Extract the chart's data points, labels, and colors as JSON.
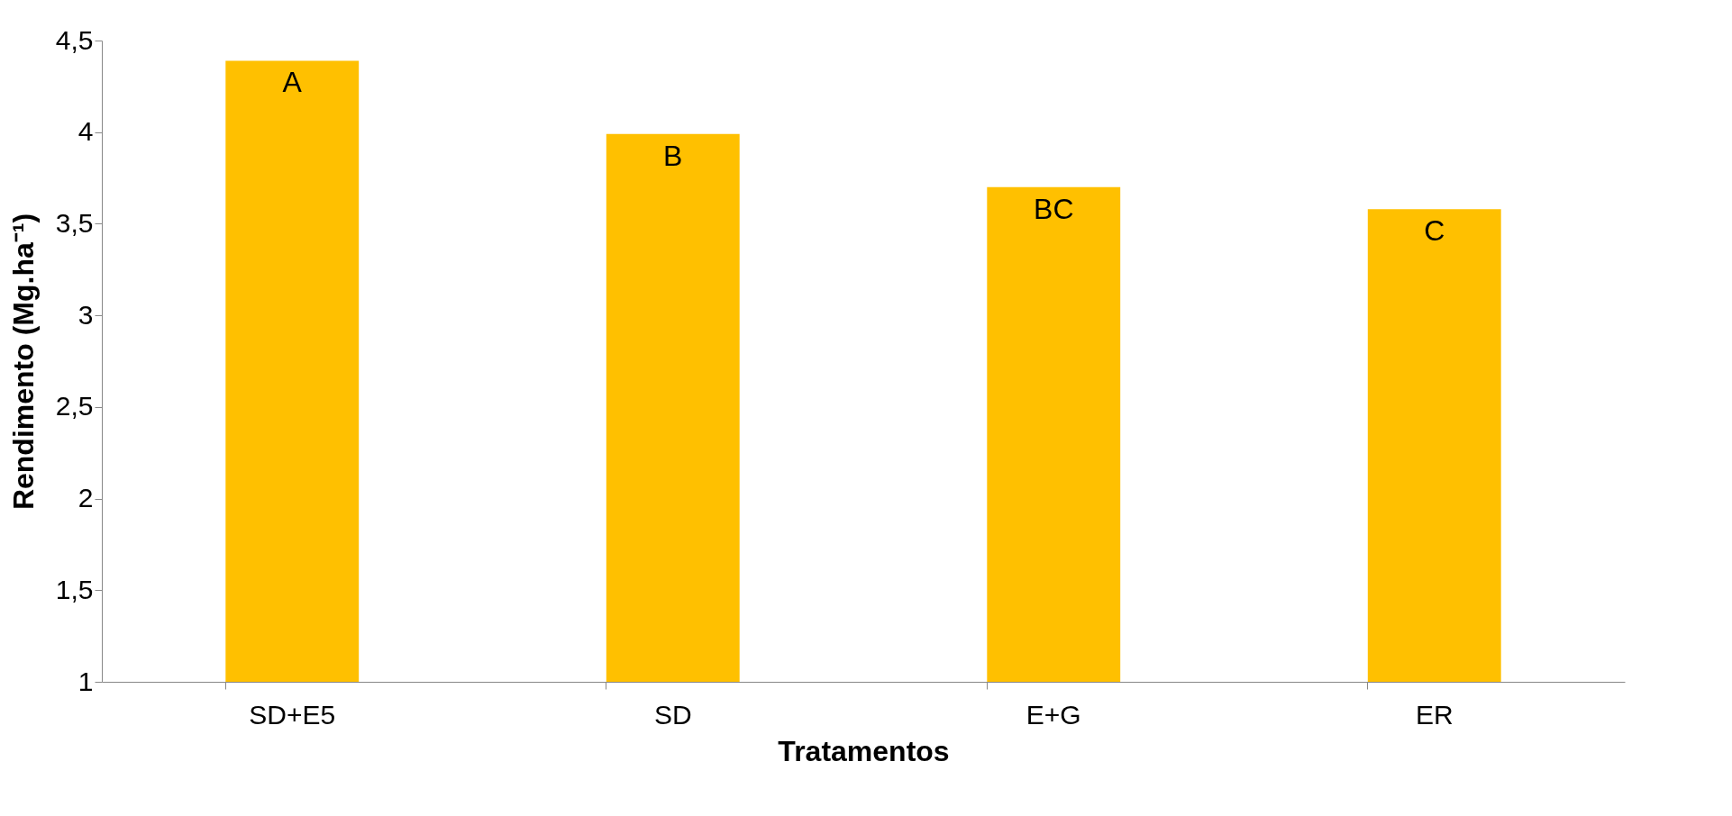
{
  "chart_data": {
    "type": "bar",
    "xlabel": "Tratamentos",
    "ylabel": "Rendimento (Mg.ha⁻¹)",
    "categories": [
      "SD+E5",
      "SD",
      "E+G",
      "ER"
    ],
    "values": [
      4.39,
      3.99,
      3.7,
      3.58
    ],
    "color": "#ffc000",
    "ylim": [
      1,
      4.5
    ],
    "yticks": [
      1,
      {
        "value": 1.5,
        "label": "1,5"
      },
      2,
      {
        "value": 2.5,
        "label": "2,5"
      },
      3,
      {
        "value": 3.5,
        "label": "3,5"
      },
      4,
      {
        "value": 4.5,
        "label": "4,5"
      }
    ],
    "grid": false,
    "annotations": [
      {
        "text": "A",
        "x": "SD+E5",
        "y": 4.39
      },
      {
        "text": "B",
        "x": "SD",
        "y": 3.99
      },
      {
        "text": "BC",
        "x": "E+G",
        "y": 3.7
      },
      {
        "text": "C",
        "x": "ER",
        "y": 3.58
      }
    ]
  }
}
